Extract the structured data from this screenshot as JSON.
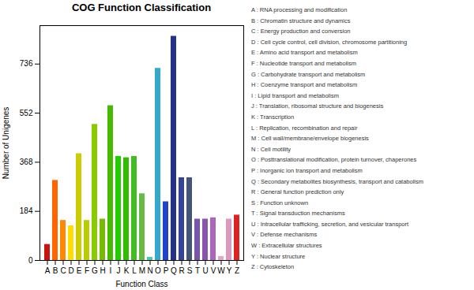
{
  "chart_data": {
    "type": "bar",
    "title": "COG Function Classification",
    "xlabel": "Function Class",
    "ylabel": "Number of Unigenes",
    "categories": [
      "A",
      "B",
      "C",
      "D",
      "E",
      "F",
      "G",
      "H",
      "I",
      "J",
      "K",
      "L",
      "M",
      "N",
      "O",
      "P",
      "Q",
      "R",
      "S",
      "T",
      "U",
      "V",
      "W",
      "Y",
      "Z"
    ],
    "values": [
      60,
      300,
      150,
      130,
      400,
      150,
      510,
      155,
      580,
      390,
      385,
      390,
      250,
      12,
      720,
      220,
      840,
      310,
      310,
      155,
      155,
      160,
      15,
      155,
      170
    ],
    "colors": [
      "#cc1111",
      "#ff6600",
      "#ff8800",
      "#ffdd00",
      "#cccc00",
      "#bbcc00",
      "#88cc00",
      "#77bb00",
      "#44bb00",
      "#22cc00",
      "#33bb00",
      "#44bb22",
      "#66bb44",
      "#44ccaa",
      "#33aacc",
      "#2244cc",
      "#223388",
      "#334499",
      "#445577",
      "#7755aa",
      "#8855aa",
      "#aa66bb",
      "#ddaacc",
      "#dd99bb",
      "#dd2222"
    ],
    "ylim": [
      0,
      880
    ],
    "yticks": [
      0,
      184,
      368,
      552,
      736
    ],
    "grid": false,
    "annotations": [
      "A :  RNA processing and modification",
      "B :  Chromatin structure and dynamics",
      "C :  Energy production and conversion",
      "D :  Cell cycle control, cell division, chromosome partitioning",
      "E :  Amino acid transport and metabolism",
      "F :  Nucleotide transport and metabolism",
      "G :  Carbohydrate transport and metabolism",
      "H :  Coenzyme transport and metabolism",
      "I :  Lipid transport and metabolism",
      "J :  Translation, ribosomal structure and biogenesis",
      "K :  Transcription",
      "L :  Replication, recombination and repair",
      "M :  Cell wall/membrane/envelope biogenesis",
      "N :  Cell motility",
      "O :  Posttranslational modification, protein turnover, chaperones",
      "P :  Inorganic ion transport and metabolism",
      "Q :  Secondary metabolites biosynthesis, transport and catabolism",
      "R :  General function prediction only",
      "S :  Function unknown",
      "T :  Signal transduction mechanisms",
      "U :  Intracellular trafficking, secretion, and vesicular transport",
      "V :  Defense mechanisms",
      "W :  Extracellular structures",
      "Y :  Nuclear structure",
      "Z :  Cytoskeleton"
    ]
  }
}
